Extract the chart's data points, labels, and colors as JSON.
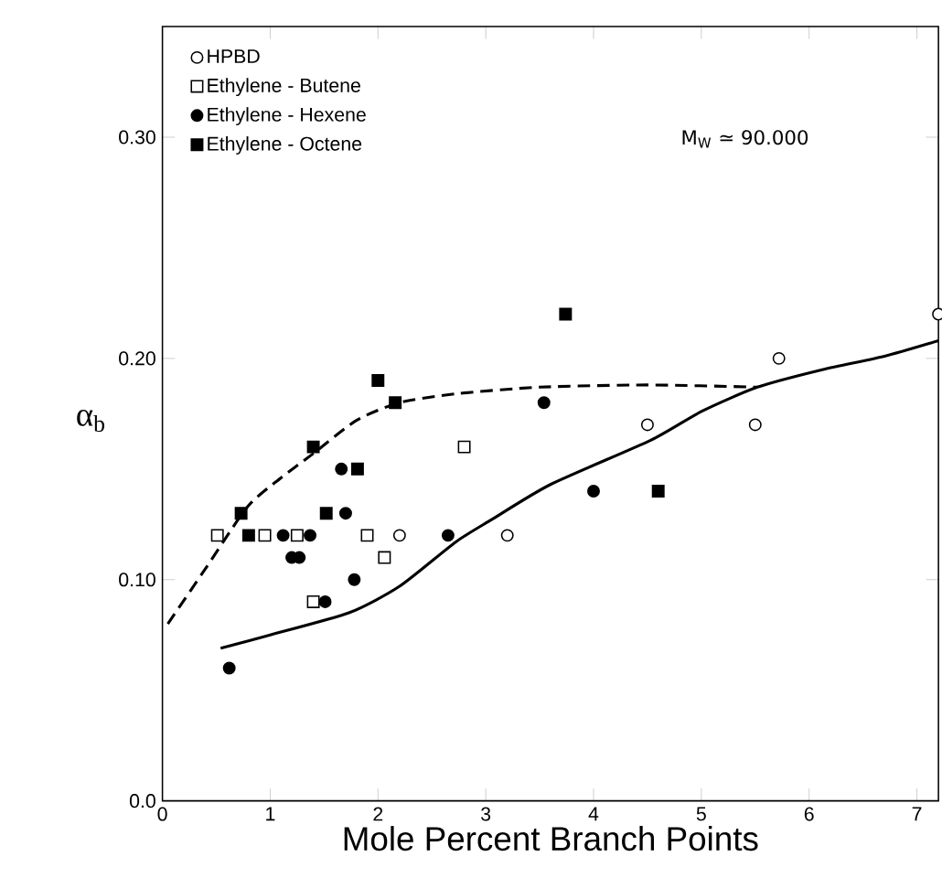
{
  "chart_data": {
    "type": "scatter",
    "xlabel": "Mole Percent Branch Points",
    "ylabel": "α$_{b}$",
    "annotations": [
      "M$_{W}$ ≃ 90.000"
    ],
    "xlim": [
      0,
      7.2
    ],
    "ylim": [
      0,
      0.35
    ],
    "xticks": [
      0,
      1,
      2,
      3,
      4,
      5,
      6,
      7
    ],
    "yticks": [
      {
        "value": 0,
        "label": "0.0"
      },
      {
        "value": 0.1,
        "label": "0.10"
      },
      {
        "value": 0.2,
        "label": "0.20"
      },
      {
        "value": 0.3,
        "label": "0.30"
      }
    ],
    "legend": "top left",
    "series": [
      {
        "name": "HPBD",
        "marker": "circle",
        "color": "#ffffff",
        "x": [
          2.2,
          3.2,
          4.5,
          5.5,
          5.72,
          7.2
        ],
        "values": [
          0.12,
          0.12,
          0.17,
          0.17,
          0.2,
          0.22
        ]
      },
      {
        "name": "Ethylene - Butene",
        "marker": "square",
        "color": "#ffffff",
        "x": [
          0.51,
          0.95,
          1.25,
          1.4,
          1.9,
          2.06,
          2.8
        ],
        "values": [
          0.12,
          0.12,
          0.12,
          0.09,
          0.12,
          0.11,
          0.16
        ]
      },
      {
        "name": "Ethylene - Hexene",
        "marker": "circle",
        "color": "#000000",
        "x": [
          0.62,
          1.12,
          1.2,
          1.27,
          1.37,
          1.51,
          1.66,
          1.7,
          1.78,
          2.65,
          3.54,
          4.0
        ],
        "values": [
          0.06,
          0.12,
          0.11,
          0.11,
          0.12,
          0.09,
          0.15,
          0.13,
          0.1,
          0.12,
          0.18,
          0.14
        ]
      },
      {
        "name": "Ethylene - Octene",
        "marker": "square",
        "color": "#000000",
        "x": [
          0.73,
          0.8,
          1.4,
          1.52,
          1.81,
          2.0,
          2.16,
          3.74,
          4.6
        ],
        "values": [
          0.13,
          0.12,
          0.16,
          0.13,
          0.15,
          0.19,
          0.18,
          0.22,
          0.14
        ]
      },
      {
        "type": "line",
        "line_style": "dashed",
        "marker": "none",
        "color": "#000000",
        "x": [
          0.05,
          0.4,
          0.79,
          1.1,
          1.4,
          1.8,
          2.2,
          2.72,
          3.5,
          4.5,
          5.52
        ],
        "values": [
          0.08,
          0.105,
          0.133,
          0.146,
          0.157,
          0.172,
          0.18,
          0.184,
          0.187,
          0.188,
          0.187
        ]
      },
      {
        "type": "line",
        "line_style": "solid",
        "marker": "none",
        "color": "#000000",
        "x": [
          0.54,
          1.0,
          1.73,
          2.2,
          2.72,
          3.05,
          3.6,
          4.53,
          5.0,
          5.52,
          6.13,
          6.7,
          7.2
        ],
        "values": [
          0.069,
          0.075,
          0.085,
          0.097,
          0.117,
          0.127,
          0.143,
          0.163,
          0.176,
          0.187,
          0.195,
          0.201,
          0.208
        ]
      }
    ]
  }
}
